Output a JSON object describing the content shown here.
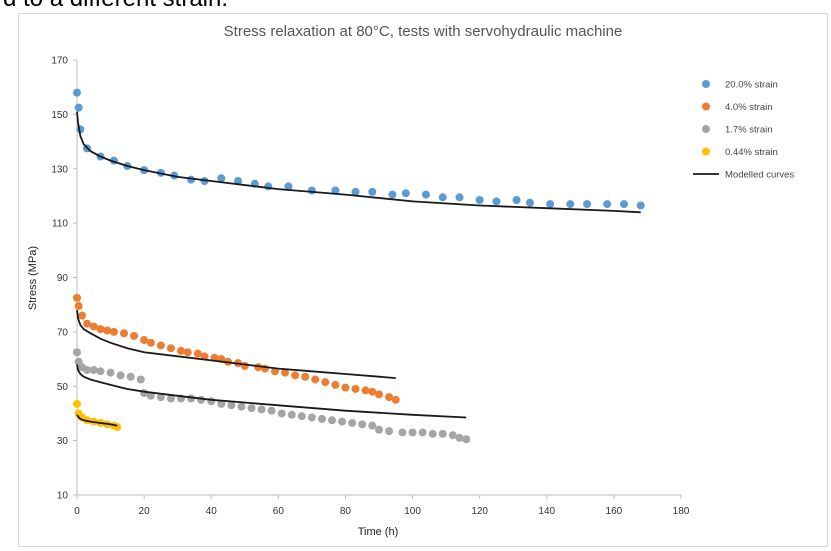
{
  "caption": "d to a different strain.",
  "colors": {
    "s20": "#5b9bd5",
    "s4": "#ed7d31",
    "s17": "#a5a5a5",
    "s044": "#ffc000",
    "model": "#1a1a1a",
    "axis": "#bfbfbf"
  },
  "chart_data": {
    "type": "scatter",
    "title": "Stress relaxation at 80°C, tests with servohydraulic machine",
    "xlabel": "Time (h)",
    "ylabel": "Stress (MPa)",
    "xlim": [
      0,
      180
    ],
    "ylim": [
      10,
      170
    ],
    "xticks": [
      0,
      20,
      40,
      60,
      80,
      100,
      120,
      140,
      160,
      180
    ],
    "yticks": [
      10,
      30,
      50,
      70,
      90,
      110,
      130,
      150,
      170
    ],
    "grid": false,
    "legend_position": "right",
    "series": [
      {
        "name": "20.0% strain",
        "color_key": "s20",
        "x": [
          0,
          0.5,
          1,
          3,
          7,
          11,
          15,
          20,
          25,
          29,
          34,
          38,
          43,
          48,
          53,
          57,
          63,
          70,
          77,
          83,
          88,
          94,
          98,
          104,
          109,
          114,
          120,
          125,
          131,
          135,
          141,
          147,
          152,
          158,
          163,
          168
        ],
        "y": [
          158,
          152.5,
          144.5,
          137.5,
          134.5,
          133,
          131,
          129.5,
          128.5,
          127.5,
          126,
          125.5,
          126.5,
          125.5,
          124.5,
          123.5,
          123.5,
          122,
          122,
          121.5,
          121.5,
          120.5,
          121,
          120.5,
          119.5,
          119.5,
          118.5,
          118,
          118.5,
          117.5,
          117,
          117,
          117,
          117,
          117,
          116.5
        ]
      },
      {
        "name": "4.0% strain",
        "color_key": "s4",
        "x": [
          0,
          0.5,
          1.5,
          3,
          5,
          7,
          9,
          11,
          14,
          17,
          20,
          22,
          25,
          28,
          31,
          33,
          36,
          38,
          41,
          43,
          45,
          48,
          50,
          54,
          56,
          59,
          62,
          65,
          68,
          71,
          74,
          77,
          80,
          83,
          86,
          88,
          90,
          93,
          95
        ],
        "y": [
          82.5,
          79.5,
          76,
          73,
          72,
          71,
          70.5,
          70,
          69.5,
          68.5,
          67,
          66,
          65,
          64,
          63,
          62.5,
          62,
          61,
          60.5,
          60,
          59,
          58.5,
          57.5,
          57,
          56.5,
          55.5,
          55,
          54,
          53.5,
          52.5,
          51.5,
          50.5,
          49.5,
          49,
          48.5,
          48,
          47,
          46,
          45
        ]
      },
      {
        "name": "1.7% strain",
        "color_key": "s17",
        "x": [
          0,
          0.5,
          1.5,
          3,
          5,
          7,
          10,
          13,
          16,
          19,
          20,
          22,
          25,
          28,
          31,
          34,
          37,
          40,
          43,
          46,
          49,
          52,
          55,
          58,
          61,
          64,
          67,
          70,
          73,
          76,
          79,
          82,
          85,
          88,
          90,
          93,
          97,
          100,
          103,
          106,
          109,
          112,
          114,
          116
        ],
        "y": [
          62.5,
          59,
          57,
          56,
          56,
          55.5,
          55,
          54,
          53.5,
          52.5,
          47.5,
          46.5,
          46,
          45.5,
          45.5,
          45.5,
          45,
          44.5,
          43.5,
          43,
          42.5,
          42,
          41.5,
          41,
          40,
          39.5,
          39,
          38.5,
          38,
          37.5,
          37,
          36.5,
          36,
          35.5,
          34,
          33.5,
          33,
          33,
          33,
          32.5,
          32.5,
          32,
          31,
          30.5
        ]
      },
      {
        "name": "0.44% strain",
        "color_key": "s044",
        "x": [
          0,
          0.5,
          1.5,
          3,
          5,
          7,
          9,
          11,
          12
        ],
        "y": [
          43.5,
          40,
          38.5,
          37.5,
          37,
          36.5,
          36,
          35.5,
          35
        ]
      }
    ],
    "model_curves": {
      "name": "Modelled curves",
      "color_key": "model",
      "curves": [
        {
          "x": [
            0,
            0.3,
            1,
            2,
            4,
            7,
            10,
            15,
            20,
            30,
            40,
            60,
            80,
            100,
            120,
            140,
            160,
            168
          ],
          "y": [
            151,
            147,
            142,
            139,
            136.5,
            134.5,
            133,
            131,
            129.5,
            127,
            125.5,
            122.5,
            120.5,
            118,
            116.5,
            115.5,
            114.5,
            114
          ]
        },
        {
          "x": [
            0,
            0.3,
            1,
            2,
            4,
            7,
            10,
            15,
            20,
            30,
            40,
            50,
            60,
            70,
            80,
            90,
            95
          ],
          "y": [
            78,
            75,
            72.5,
            71,
            69.5,
            67.5,
            66,
            64,
            62.5,
            61,
            59.5,
            58,
            56.5,
            55.5,
            54.5,
            53.5,
            53
          ]
        },
        {
          "x": [
            0,
            0.3,
            1,
            2,
            4,
            7,
            10,
            15,
            20,
            30,
            40,
            60,
            80,
            100,
            116
          ],
          "y": [
            58,
            56,
            54.5,
            53.5,
            52.5,
            51.5,
            50.5,
            49,
            48,
            46.5,
            45,
            43,
            41,
            39.5,
            38.5
          ]
        },
        {
          "x": [
            0,
            0.5,
            1,
            2,
            4,
            7,
            10,
            12
          ],
          "y": [
            39.5,
            38.5,
            38,
            37.5,
            37,
            36.5,
            36,
            35.5
          ]
        }
      ]
    }
  }
}
